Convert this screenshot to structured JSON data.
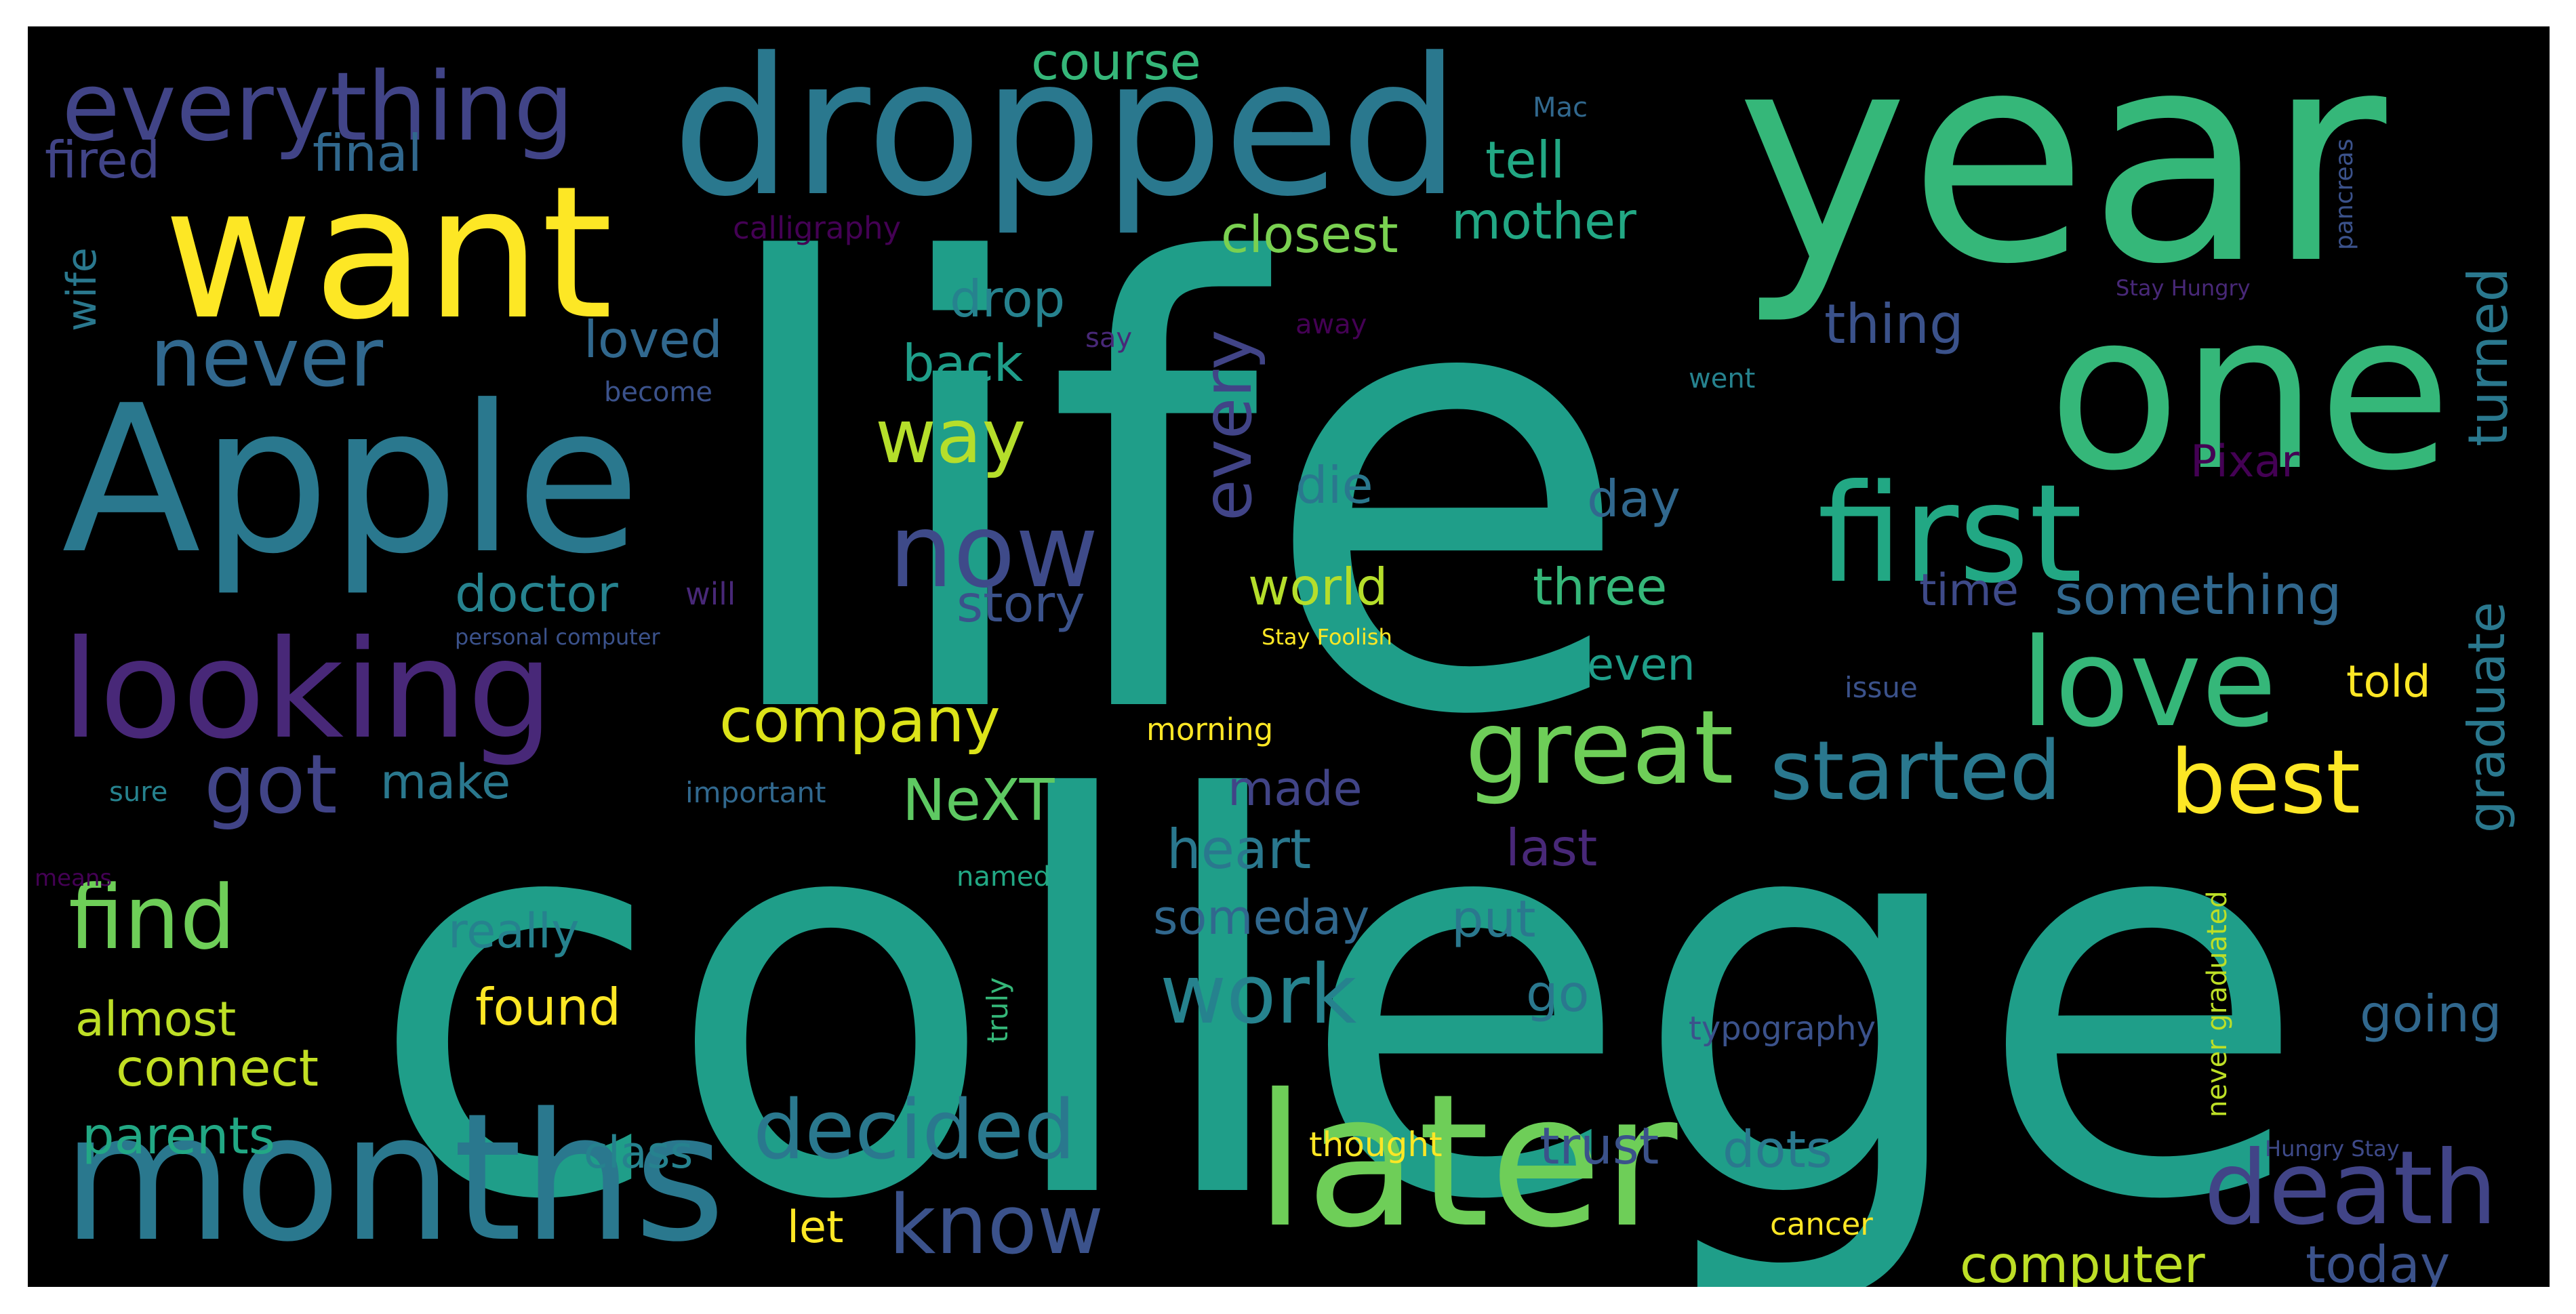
{
  "wordcloud": {
    "words": [
      {
        "text": "life",
        "color": "#1f9e89"
      },
      {
        "text": "college",
        "color": "#1f9e89"
      },
      {
        "text": "year",
        "color": "#35b779"
      },
      {
        "text": "dropped",
        "color": "#2a788e"
      },
      {
        "text": "want",
        "color": "#fde725"
      },
      {
        "text": "Apple",
        "color": "#2a788e"
      },
      {
        "text": "one",
        "color": "#35b779"
      },
      {
        "text": "months",
        "color": "#2a788e"
      },
      {
        "text": "later",
        "color": "#6ece58"
      },
      {
        "text": "looking",
        "color": "#482878"
      },
      {
        "text": "first",
        "color": "#22a884"
      },
      {
        "text": "love",
        "color": "#35b779"
      },
      {
        "text": "everything",
        "color": "#414487"
      },
      {
        "text": "great",
        "color": "#6ece58"
      },
      {
        "text": "now",
        "color": "#3e4a89"
      },
      {
        "text": "death",
        "color": "#414487"
      },
      {
        "text": "started",
        "color": "#2a788e"
      },
      {
        "text": "best",
        "color": "#fde725"
      },
      {
        "text": "never",
        "color": "#31688e"
      },
      {
        "text": "work",
        "color": "#26828e"
      },
      {
        "text": "decided",
        "color": "#2a788e"
      },
      {
        "text": "know",
        "color": "#3b528b"
      },
      {
        "text": "find",
        "color": "#6ece58"
      },
      {
        "text": "got",
        "color": "#414487"
      },
      {
        "text": "every",
        "color": "#414487"
      },
      {
        "text": "way",
        "color": "#b5de2b"
      },
      {
        "text": "course",
        "color": "#35b779"
      },
      {
        "text": "fired",
        "color": "#414487"
      },
      {
        "text": "final",
        "color": "#31688e"
      },
      {
        "text": "tell",
        "color": "#22a884"
      },
      {
        "text": "mother",
        "color": "#22a884"
      },
      {
        "text": "closest",
        "color": "#7ad151"
      },
      {
        "text": "drop",
        "color": "#26828e"
      },
      {
        "text": "loved",
        "color": "#31688e"
      },
      {
        "text": "back",
        "color": "#1f9e89"
      },
      {
        "text": "thing",
        "color": "#3b528b"
      },
      {
        "text": "turned",
        "color": "#2a788e"
      },
      {
        "text": "Pixar",
        "color": "#440154"
      },
      {
        "text": "die",
        "color": "#2a788e"
      },
      {
        "text": "day",
        "color": "#31688e"
      },
      {
        "text": "doctor",
        "color": "#26828e"
      },
      {
        "text": "story",
        "color": "#3b528b"
      },
      {
        "text": "world",
        "color": "#b5de2b"
      },
      {
        "text": "three",
        "color": "#35b779"
      },
      {
        "text": "time",
        "color": "#3e4a89"
      },
      {
        "text": "something",
        "color": "#31688e"
      },
      {
        "text": "graduate",
        "color": "#2a788e"
      },
      {
        "text": "company",
        "color": "#dce319"
      },
      {
        "text": "even",
        "color": "#1f9e89"
      },
      {
        "text": "told",
        "color": "#fde725"
      },
      {
        "text": "make",
        "color": "#2a788e"
      },
      {
        "text": "NeXT",
        "color": "#5ec962"
      },
      {
        "text": "made",
        "color": "#414487"
      },
      {
        "text": "heart",
        "color": "#2a788e"
      },
      {
        "text": "last",
        "color": "#482878"
      },
      {
        "text": "really",
        "color": "#26828e"
      },
      {
        "text": "someday",
        "color": "#31688e"
      },
      {
        "text": "put",
        "color": "#2a788e"
      },
      {
        "text": "almost",
        "color": "#bddf26"
      },
      {
        "text": "found",
        "color": "#fde725"
      },
      {
        "text": "go",
        "color": "#2a788e"
      },
      {
        "text": "going",
        "color": "#31688e"
      },
      {
        "text": "connect",
        "color": "#c2df23"
      },
      {
        "text": "parents",
        "color": "#22a884"
      },
      {
        "text": "class",
        "color": "#26828e"
      },
      {
        "text": "trust",
        "color": "#3b528b"
      },
      {
        "text": "dots",
        "color": "#2a788e"
      },
      {
        "text": "let",
        "color": "#fde725"
      },
      {
        "text": "computer",
        "color": "#bddf26"
      },
      {
        "text": "today",
        "color": "#3b528b"
      },
      {
        "text": "wife",
        "color": "#2a788e"
      },
      {
        "text": "calligraphy",
        "color": "#440154"
      },
      {
        "text": "Mac",
        "color": "#31688e"
      },
      {
        "text": "pancreas",
        "color": "#3b528b"
      },
      {
        "text": "Stay Hungry",
        "color": "#482878"
      },
      {
        "text": "say",
        "color": "#482878"
      },
      {
        "text": "away",
        "color": "#440154"
      },
      {
        "text": "become",
        "color": "#3b528b"
      },
      {
        "text": "went",
        "color": "#26828e"
      },
      {
        "text": "will",
        "color": "#482878"
      },
      {
        "text": "personal computer",
        "color": "#3b528b"
      },
      {
        "text": "Stay Foolish",
        "color": "#fde725"
      },
      {
        "text": "issue",
        "color": "#3b528b"
      },
      {
        "text": "morning",
        "color": "#fde725"
      },
      {
        "text": "sure",
        "color": "#26828e"
      },
      {
        "text": "important",
        "color": "#31688e"
      },
      {
        "text": "means",
        "color": "#440154"
      },
      {
        "text": "named",
        "color": "#22a884"
      },
      {
        "text": "truly",
        "color": "#35b779"
      },
      {
        "text": "never graduated",
        "color": "#bddf26"
      },
      {
        "text": "typography",
        "color": "#3b528b"
      },
      {
        "text": "thought",
        "color": "#fde725"
      },
      {
        "text": "cancer",
        "color": "#fde725"
      },
      {
        "text": "Hungry Stay",
        "color": "#3e4a89"
      }
    ]
  }
}
